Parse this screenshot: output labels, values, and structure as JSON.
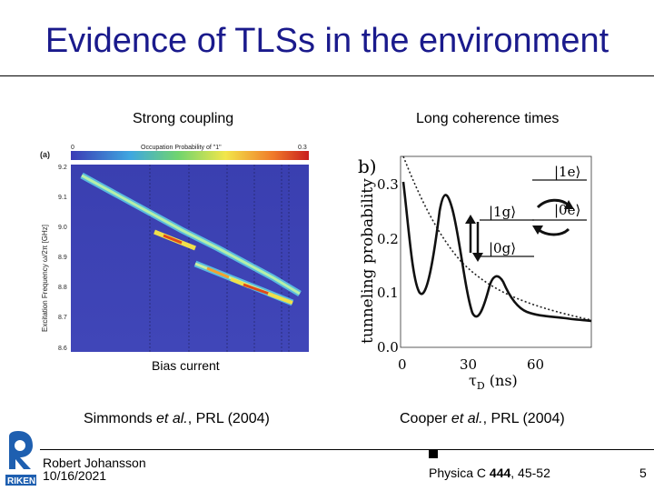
{
  "slide": {
    "title": "Evidence of TLSs in the environment",
    "page_number": "5"
  },
  "left": {
    "heading": "Strong coupling",
    "xlabel": "Bias current",
    "citation_prefix": "Simmonds ",
    "citation_etal": "et al.",
    "citation_suffix": ", PRL (2004)",
    "figure": {
      "panel": "(a)",
      "colorbar_label": "Occupation Probability of \"1\"",
      "colorbar_min": "0",
      "colorbar_max": "0.3",
      "ylabel": "Excitation Frequency ω/2π [GHz]",
      "yticks": [
        "9.2",
        "9.1",
        "9.0",
        "8.9",
        "8.8",
        "8.7",
        "8.6"
      ]
    }
  },
  "right": {
    "heading": "Long coherence times",
    "citation_prefix": "Cooper ",
    "citation_etal": "et al.",
    "citation_suffix": ", PRL (2004)",
    "figure": {
      "panel": "b)",
      "ylabel": "tunneling probability",
      "xlabel_main": "τ",
      "xlabel_sub": "D",
      "xlabel_unit": " (ns)",
      "yticks": [
        "0.0",
        "0.1",
        "0.2",
        "0.3"
      ],
      "xticks": [
        "0",
        "30",
        "60"
      ],
      "state_1e": "|1e⟩",
      "state_1g": "|1g⟩",
      "state_0e": "|0e⟩",
      "state_0g": "|0g⟩"
    }
  },
  "footer": {
    "author": "Robert Johansson",
    "date": "10/16/2021",
    "journal_prefix": "Physica C ",
    "journal_volume": "444",
    "journal_pages": ", 45-52",
    "logo_text": "RIKEN"
  },
  "colors": {
    "title": "#1a1a8c"
  }
}
